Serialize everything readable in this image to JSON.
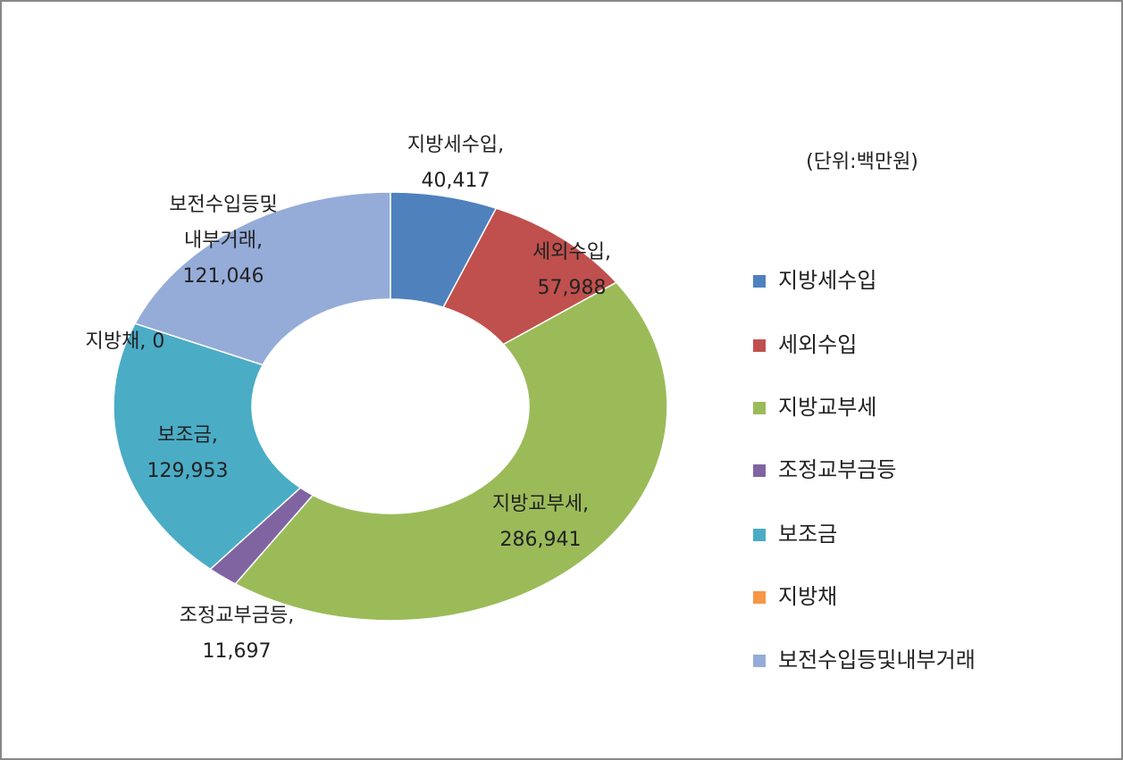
{
  "chart_data": {
    "type": "donut",
    "note": "(단위:백만원)",
    "categories": [
      "지방세수입",
      "세외수입",
      "지방교부세",
      "조정교부금등",
      "보조금",
      "지방채",
      "보전수입등및내부거래"
    ],
    "values": [
      40417,
      57988,
      286941,
      11697,
      129953,
      0,
      121046
    ],
    "value_labels": [
      [
        "지방세수입,",
        "40,417"
      ],
      [
        "세외수입,",
        "57,988"
      ],
      [
        "지방교부세,",
        "286,941"
      ],
      [
        "조정교부금등,",
        "11,697"
      ],
      [
        "보조금,",
        "129,953"
      ],
      [
        "지방채, 0"
      ],
      [
        "보전수입등및",
        "내부거래,",
        "121,046"
      ]
    ],
    "colors": [
      "#4f81bd",
      "#c0504d",
      "#9bbb59",
      "#8064a2",
      "#4bacc6",
      "#f79646",
      "#95acd9"
    ],
    "legend": "right"
  }
}
